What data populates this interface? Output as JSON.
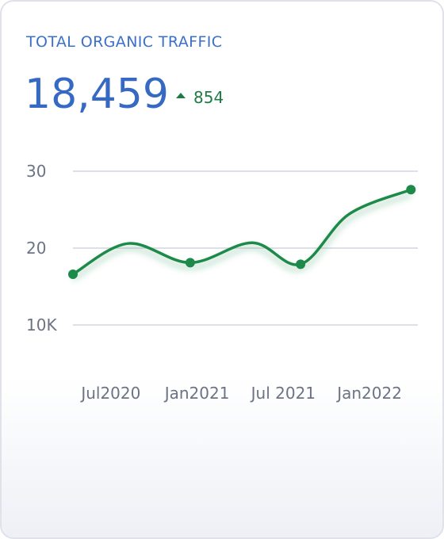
{
  "header": {
    "title": "TOTAL ORGANIC TRAFFIC",
    "value": "18,459",
    "delta": 854
  },
  "chart_data": {
    "type": "line",
    "x": [
      2020.28,
      2020.6,
      2020.96,
      2021.32,
      2021.6,
      2021.88,
      2022.24
    ],
    "series": [
      {
        "color": "#1e8a4a",
        "values": [
          16.6,
          20.6,
          18.1,
          20.7,
          17.9,
          24.4,
          27.6
        ]
      }
    ],
    "marker_indices": [
      0,
      2,
      4,
      6
    ],
    "xlim": [
      2020.28,
      2022.28
    ],
    "xticks": [
      {
        "value": 2020.5,
        "label": "Jul2020"
      },
      {
        "value": 2021,
        "label": "Jan2021"
      },
      {
        "value": 2021.5,
        "label": "Jul 2021"
      },
      {
        "value": 2022,
        "label": "Jan2022"
      }
    ],
    "ylim": [
      10,
      30
    ],
    "yticks": [
      {
        "value": 10,
        "label": "10K"
      },
      20,
      30
    ],
    "grid": true
  }
}
